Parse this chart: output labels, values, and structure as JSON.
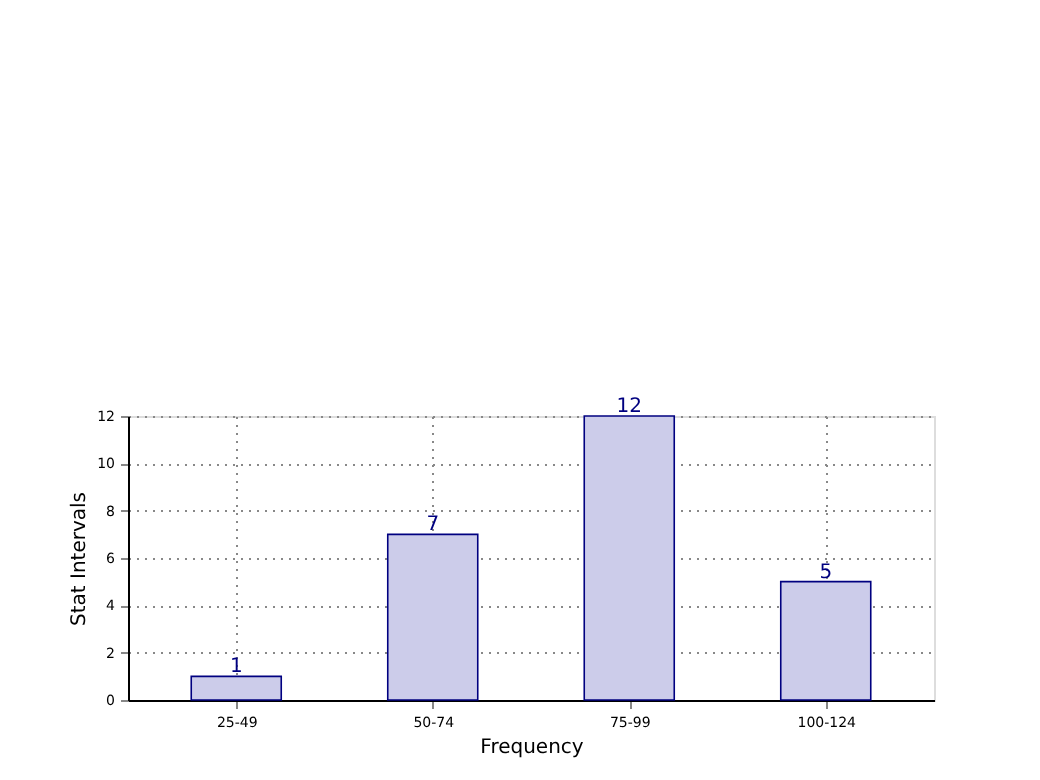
{
  "chart_data": {
    "type": "bar",
    "xlabel": "Frequency",
    "ylabel": "Stat Intervals",
    "categories": [
      "25-49",
      "50-74",
      "75-99",
      "100-124"
    ],
    "values": [
      1,
      7,
      12,
      5
    ],
    "color": "#ccccea",
    "ylim": [
      0,
      12
    ],
    "yticks": [
      0,
      2,
      4,
      6,
      8,
      10,
      12
    ],
    "grid": true,
    "data_labels": true
  }
}
